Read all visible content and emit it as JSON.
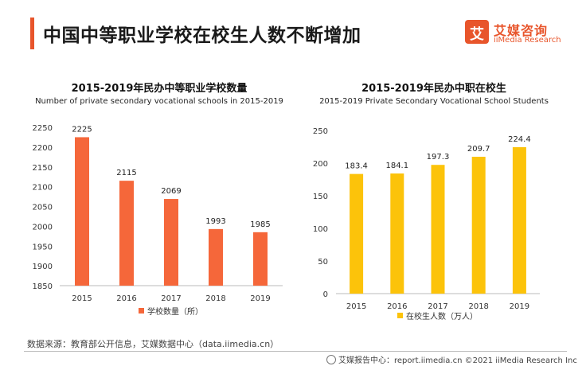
{
  "page": {
    "title": "中国中等职业学校在校生人数不断增加",
    "brand_cn": "艾媒咨询",
    "brand_en": "iiMedia Research",
    "brand_mark": "艾",
    "source": "数据来源：教育部公开信息，艾媒数据中心（data.iimedia.cn）",
    "footer": "艾媒报告中心：report.iimedia.cn   ©2021  iiMedia Research  Inc"
  },
  "colors": {
    "accent": "#e8552b",
    "left_bar": "#f5673a",
    "right_bar": "#fcc30a"
  },
  "chart_data": [
    {
      "type": "bar",
      "title": "2015-2019年民办中等职业学校数量",
      "subtitle": "Number of private secondary vocational schools in 2015-2019",
      "categories": [
        "2015",
        "2016",
        "2017",
        "2018",
        "2019"
      ],
      "series": [
        {
          "name": "学校数量（所）",
          "values": [
            2225,
            2115,
            2069,
            1993,
            1985
          ]
        }
      ],
      "ylim": [
        1850,
        2250
      ],
      "yticks": [
        1850,
        1900,
        1950,
        2000,
        2050,
        2100,
        2150,
        2200,
        2250
      ],
      "grid": false,
      "legend": "bottom"
    },
    {
      "type": "bar",
      "title": "2015-2019年民办中职在校生",
      "subtitle": "2015-2019 Private Secondary Vocational School Students",
      "categories": [
        "2015",
        "2016",
        "2017",
        "2018",
        "2019"
      ],
      "series": [
        {
          "name": "在校生人数（万人）",
          "values": [
            183.4,
            184.1,
            197.3,
            209.7,
            224.4
          ]
        }
      ],
      "ylim": [
        0,
        250
      ],
      "yticks": [
        0,
        50,
        100,
        150,
        200,
        250
      ],
      "grid": false,
      "legend": "bottom"
    }
  ]
}
